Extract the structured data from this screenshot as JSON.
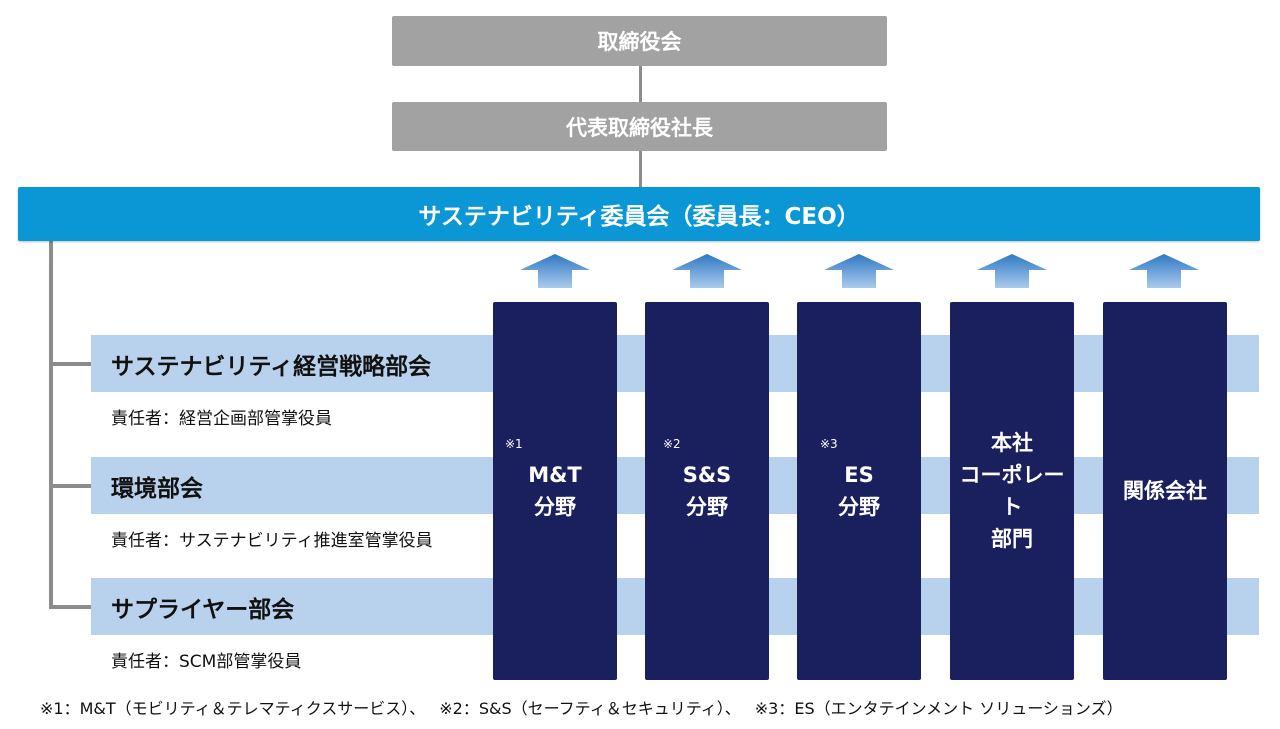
{
  "board": "取締役会",
  "president": "代表取締役社長",
  "committee": "サステナビリティ委員会（委員長：CEO）",
  "subcommittees": [
    {
      "title": "サステナビリティ経営戦略部会",
      "responsible": "責任者：経営企画部管掌役員"
    },
    {
      "title": "環境部会",
      "responsible": "責任者：サステナビリティ推進室管掌役員"
    },
    {
      "title": "サプライヤー部会",
      "responsible": "責任者：SCM部管掌役員"
    }
  ],
  "divisions": [
    {
      "note": "※1",
      "line1": "M&T",
      "line2": "分野",
      "line3": ""
    },
    {
      "note": "※2",
      "line1": "S&S",
      "line2": "分野",
      "line3": ""
    },
    {
      "note": "※3",
      "line1": "ES",
      "line2": "分野",
      "line3": ""
    },
    {
      "note": "",
      "line1": "本社",
      "line2": "コーポレート",
      "line3": "部門"
    },
    {
      "note": "",
      "line1": "関係会社",
      "line2": "",
      "line3": ""
    }
  ],
  "colors": {
    "gray_box": "#a2a2a2",
    "committee": "#0b97d6",
    "band": "#b8d1ec",
    "division": "#1a1f5e",
    "arrow": "#3d84c8"
  },
  "footnotes": [
    "※1：M&T（モビリティ＆テレマティクスサービス）、",
    "※2：S&S（セーフティ＆セキュリティ）、",
    "※3：ES（エンタテインメント ソリューションズ）"
  ]
}
